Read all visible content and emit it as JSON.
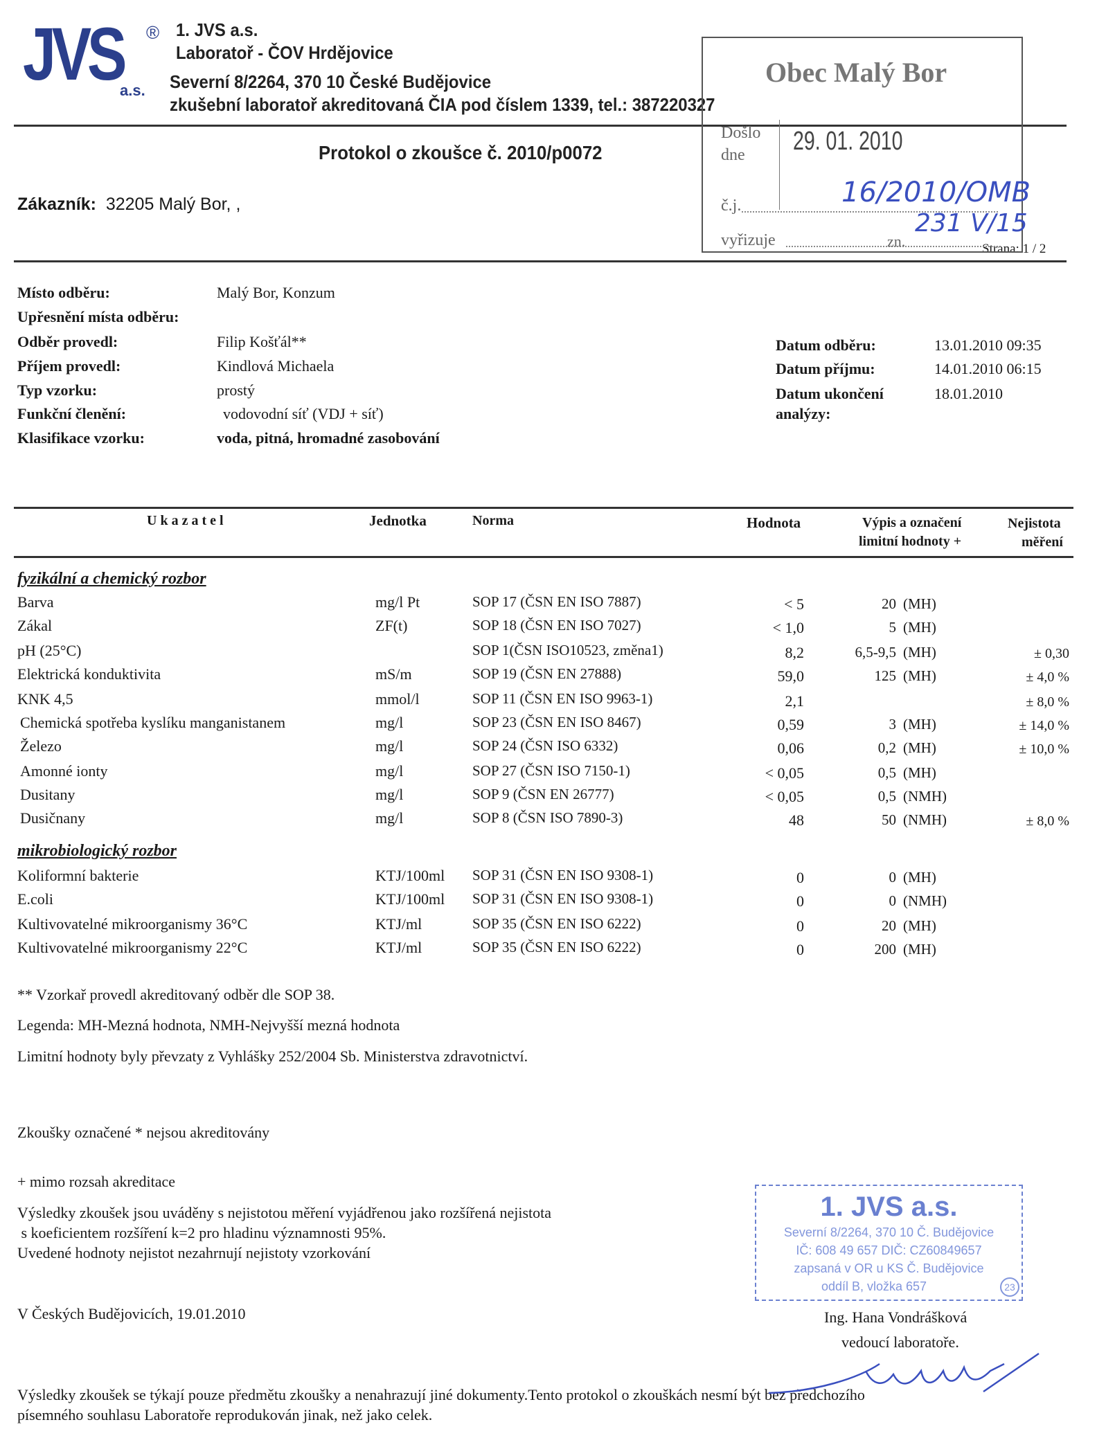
{
  "header": {
    "logo_text": "JVS",
    "logo_sub": "a.s.",
    "registered": "®",
    "company": "1. JVS a.s.",
    "lab": "Laboratoř - ČOV Hrdějovice",
    "address": "Severní 8/2264, 370 10  České Budějovice",
    "accreditation": "zkušební laboratoř akreditovaná ČIA pod číslem 1339, tel.: 387220327",
    "brand_color": "#2b3f8c"
  },
  "protocol_title": "Protokol o zkoušce č. 2010/p0072",
  "customer": {
    "label": "Zákazník:",
    "value": "32205 Malý Bor, ,"
  },
  "page": "Strana: 1 / 2",
  "received_stamp": {
    "title": "Obec Malý Bor",
    "doslo": "Došlo",
    "dne": "dne",
    "date": "29. 01. 2010",
    "cj_label": "č.j.",
    "cj_value": "16/2010/OMB",
    "vyrizuje": "vyřizuje",
    "zn_label": "zn.",
    "zn_value": "231 V/15"
  },
  "sample_info": [
    {
      "label": "Místo odběru:",
      "value": "Malý Bor, Konzum"
    },
    {
      "label": "Upřesnění místa odběru:",
      "value": ""
    },
    {
      "label": "Odběr provedl:",
      "value": "Filip Košťál**"
    },
    {
      "label": "Příjem provedl:",
      "value": "Kindlová Michaela"
    },
    {
      "label": "Typ vzorku:",
      "value": "prostý"
    },
    {
      "label": "Funkční členění:",
      "value": "vodovodní síť (VDJ + síť)"
    },
    {
      "label": "Klasifikace vzorku:",
      "value": "voda, pitná, hromadné zasobování"
    }
  ],
  "dates": [
    {
      "label": "Datum odběru:",
      "value": "13.01.2010 09:35"
    },
    {
      "label": "Datum příjmu:",
      "value": "14.01.2010 06:15"
    },
    {
      "label": "Datum ukončení",
      "value": "18.01.2010"
    },
    {
      "label": "analýzy:",
      "value": ""
    }
  ],
  "table": {
    "headers": {
      "ukazatel": "U k a z a t e l",
      "jednotka": "Jednotka",
      "norma": "Norma",
      "hodnota": "Hodnota",
      "limit1": "Výpis a označení",
      "limit2": "limitní hodnoty +",
      "nej1": "Nejistota",
      "nej2": "měření"
    },
    "sections": [
      {
        "title": "fyzikální a chemický rozbor",
        "rows": [
          [
            "Barva",
            "mg/l Pt",
            "SOP 17 (ČSN EN ISO 7887)",
            "< 5",
            "20",
            "(MH)",
            ""
          ],
          [
            "Zákal",
            "ZF(t)",
            "SOP 18 (ČSN EN ISO 7027)",
            "< 1,0",
            "5",
            "(MH)",
            ""
          ],
          [
            "pH (25°C)",
            "",
            "SOP 1(ČSN ISO10523, změna1)",
            "8,2",
            "6,5-9,5",
            "(MH)",
            "± 0,30"
          ],
          [
            "Elektrická konduktivita",
            "mS/m",
            "SOP 19 (ČSN EN 27888)",
            "59,0",
            "125",
            "(MH)",
            "± 4,0 %"
          ],
          [
            "KNK 4,5",
            "mmol/l",
            "SOP 11 (ČSN EN ISO 9963-1)",
            "2,1",
            "",
            "",
            "± 8,0 %"
          ],
          [
            "Chemická spotřeba kyslíku manganistanem",
            "mg/l",
            "SOP 23 (ČSN EN ISO 8467)",
            "0,59",
            "3",
            "(MH)",
            "± 14,0 %"
          ],
          [
            "Železo",
            "mg/l",
            "SOP 24 (ČSN ISO 6332)",
            "0,06",
            "0,2",
            "(MH)",
            "± 10,0 %"
          ],
          [
            "Amonné ionty",
            "mg/l",
            "SOP 27 (ČSN ISO 7150-1)",
            "< 0,05",
            "0,5",
            "(MH)",
            ""
          ],
          [
            "Dusitany",
            "mg/l",
            "SOP 9 (ČSN EN 26777)",
            "< 0,05",
            "0,5",
            "(NMH)",
            ""
          ],
          [
            "Dusičnany",
            "mg/l",
            "SOP 8 (ČSN ISO 7890-3)",
            "48",
            "50",
            "(NMH)",
            "± 8,0 %"
          ]
        ]
      },
      {
        "title": "mikrobiologický rozbor",
        "rows": [
          [
            "Koliformní bakterie",
            "KTJ/100ml",
            "SOP 31 (ČSN EN ISO 9308-1)",
            "0",
            "0",
            "(MH)",
            ""
          ],
          [
            "E.coli",
            "KTJ/100ml",
            "SOP 31 (ČSN EN ISO 9308-1)",
            "0",
            "0",
            "(NMH)",
            ""
          ],
          [
            "Kultivovatelné mikroorganismy 36°C",
            "KTJ/ml",
            "SOP 35 (ČSN EN ISO 6222)",
            "0",
            "20",
            "(MH)",
            ""
          ],
          [
            "Kultivovatelné mikroorganismy 22°C",
            "KTJ/ml",
            "SOP 35 (ČSN EN ISO 6222)",
            "0",
            "200",
            "(MH)",
            ""
          ]
        ]
      }
    ]
  },
  "notes": {
    "sampler": "** Vzorkař provedl akreditovaný odběr dle SOP 38.",
    "legend": "Legenda: MH-Mezná hodnota, NMH-Nejvyšší mezná hodnota",
    "limits": "Limitní hodnoty byly převzaty z Vyhlášky 252/2004 Sb. Ministerstva zdravotnictví.",
    "not_accredited": "Zkoušky označené * nejsou akreditovány",
    "outside": "+ mimo rozsah akreditace",
    "uncert1": "Výsledky zkoušek jsou uváděny s nejistotou měření vyjádřenou jako rozšířená nejistota",
    "uncert2": " s koeficientem rozšíření k=2 pro hladinu významnosti 95%.",
    "uncert3": "Uvedené hodnoty nejistot nezahrnují nejistoty vzorkování",
    "place_date": "V Českých Budějovicích, 19.01.2010",
    "signer": "Ing. Hana Vondrášková",
    "signer_role": "vedoucí laboratoře.",
    "footer1": "Výsledky zkoušek se týkají pouze předmětu zkoušky a nenahrazují jiné dokumenty.Tento protokol o zkouškách nesmí být bez předchozího",
    "footer2": "písemného souhlasu Laboratoře reprodukován jinak, než jako celek."
  },
  "company_stamp": {
    "name": "1. JVS a.s.",
    "line1": "Severní 8/2264, 370 10 Č. Budějovice",
    "line2": "IČ: 608 49 657   DIČ: CZ60849657",
    "line3": "zapsaná v OR u KS Č. Budějovice",
    "line4": "oddíl B, vložka 657",
    "number": "23",
    "color": "#4a63c8"
  }
}
